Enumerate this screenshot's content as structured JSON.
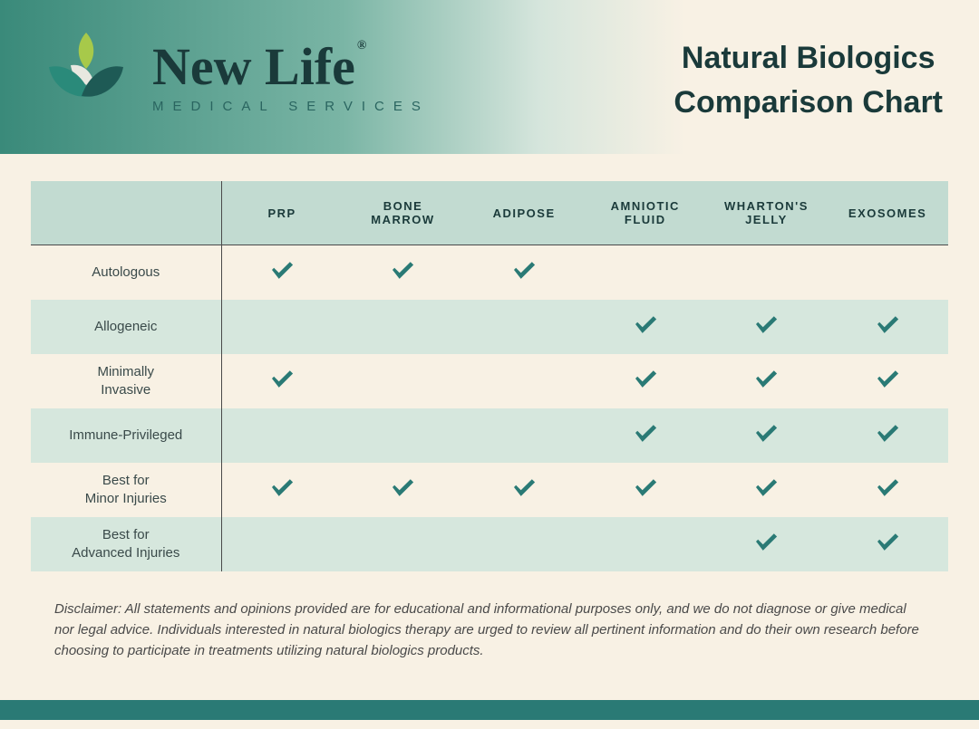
{
  "brand": {
    "name": "New Life",
    "registered": "®",
    "tagline": "MEDICAL SERVICES"
  },
  "title": {
    "line1": "Natural Biologics",
    "line2": "Comparison Chart"
  },
  "colors": {
    "header_grad_start": "#3a8a7a",
    "header_grad_end": "#f8f1e4",
    "th_bg": "#c2dbd1",
    "row_even_bg": "#d6e7dd",
    "check": "#2a7a75",
    "page_bg": "#f8f1e4",
    "text_dark": "#1a3a3a",
    "footbar": "#2a7a75",
    "leaf_green": "#a7c94a",
    "leaf_teal": "#2a8a7a",
    "leaf_light": "#e8e8e0",
    "leaf_dark": "#1e5a55"
  },
  "columns": [
    "PRP",
    "BONE MARROW",
    "ADIPOSE",
    "AMNIOTIC FLUID",
    "WHARTON'S JELLY",
    "EXOSOMES"
  ],
  "rows": [
    {
      "label": "Autologous",
      "checks": [
        true,
        true,
        true,
        false,
        false,
        false
      ]
    },
    {
      "label": "Allogeneic",
      "checks": [
        false,
        false,
        false,
        true,
        true,
        true
      ]
    },
    {
      "label": "Minimally\nInvasive",
      "checks": [
        true,
        false,
        false,
        true,
        true,
        true
      ]
    },
    {
      "label": "Immune-Privileged",
      "checks": [
        false,
        false,
        false,
        true,
        true,
        true
      ]
    },
    {
      "label": "Best for\nMinor Injuries",
      "checks": [
        true,
        true,
        true,
        true,
        true,
        true
      ]
    },
    {
      "label": "Best for\nAdvanced Injuries",
      "checks": [
        false,
        false,
        false,
        false,
        true,
        true
      ]
    }
  ],
  "disclaimer": "Disclaimer: All statements and opinions provided are for educational and informational purposes only, and we do not diagnose or give medical nor legal advice. Individuals interested in natural biologics therapy are urged to review all pertinent information and do their own research before choosing to participate in treatments utilizing natural biologics products."
}
